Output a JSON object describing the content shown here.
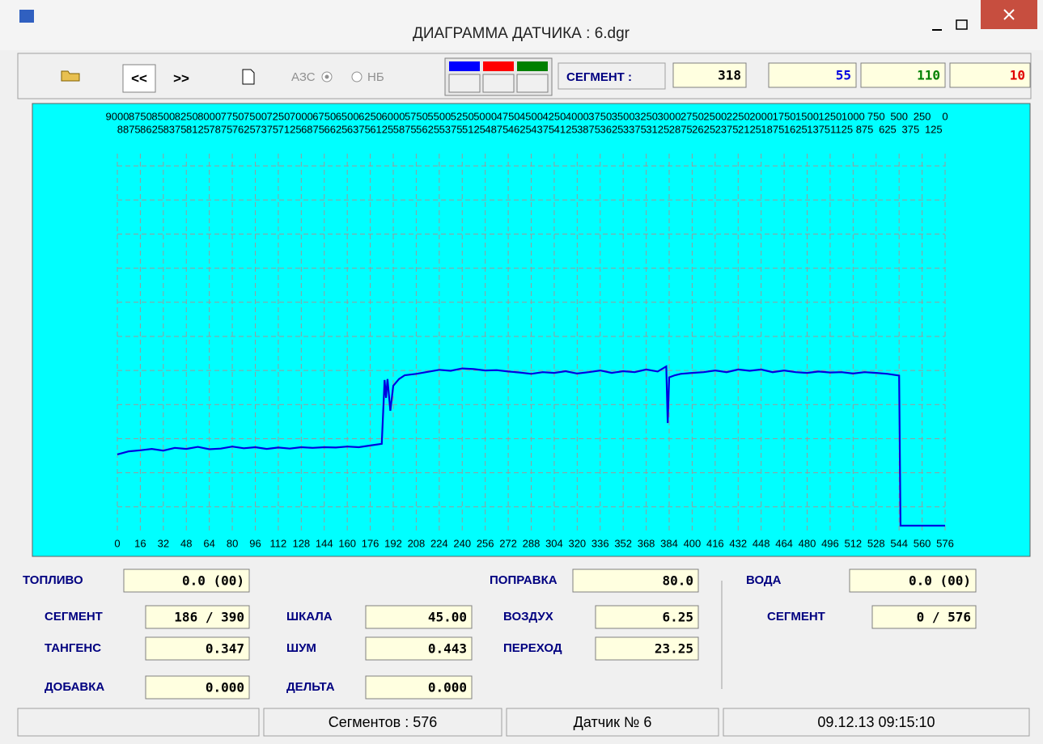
{
  "window": {
    "title": "ДИАГРАММА ДАТЧИКА : 6.dgr"
  },
  "toolbar": {
    "prev": "<<",
    "next": ">>",
    "azs": "АЗС",
    "nb": "НБ",
    "segment_label": "СЕГМЕНТ :",
    "segment_values": [
      {
        "text": "318",
        "color": "#000000"
      },
      {
        "text": "55",
        "color": "#0000e0"
      },
      {
        "text": "110",
        "color": "#008000"
      },
      {
        "text": "10",
        "color": "#e00000"
      }
    ],
    "legend_colors": [
      "#0000ff",
      "#ff0000",
      "#008000"
    ]
  },
  "chart_data": {
    "type": "line",
    "x": [
      0,
      8,
      16,
      24,
      32,
      40,
      48,
      56,
      64,
      72,
      80,
      88,
      96,
      104,
      112,
      120,
      128,
      136,
      144,
      152,
      160,
      168,
      176,
      184,
      186,
      187,
      188,
      190,
      192,
      196,
      200,
      208,
      216,
      224,
      232,
      240,
      248,
      256,
      264,
      272,
      280,
      288,
      296,
      304,
      312,
      320,
      328,
      336,
      344,
      352,
      360,
      368,
      376,
      382,
      383,
      384,
      388,
      392,
      400,
      408,
      416,
      424,
      432,
      440,
      448,
      456,
      464,
      472,
      480,
      488,
      496,
      504,
      512,
      520,
      528,
      536,
      544,
      545,
      576
    ],
    "series": [
      {
        "color": "#0000e0",
        "values": [
          15.4,
          16.3,
          16.6,
          17.0,
          16.5,
          17.3,
          17.0,
          17.6,
          16.9,
          17.1,
          17.7,
          17.2,
          17.5,
          17.0,
          17.4,
          17.1,
          17.5,
          17.3,
          17.5,
          17.4,
          17.7,
          17.5,
          18.0,
          18.5,
          37.2,
          32.0,
          37.5,
          28.2,
          35.5,
          37.5,
          38.6,
          39.0,
          39.6,
          40.2,
          39.9,
          40.6,
          40.4,
          40.0,
          40.1,
          39.7,
          39.4,
          39.0,
          39.5,
          39.3,
          39.8,
          39.1,
          39.5,
          40.0,
          39.3,
          39.8,
          39.5,
          40.3,
          39.7,
          41.2,
          24.6,
          38.0,
          38.6,
          39.0,
          39.3,
          39.5,
          40.0,
          39.5,
          40.3,
          39.9,
          40.3,
          39.5,
          40.0,
          39.5,
          39.3,
          39.7,
          39.4,
          39.5,
          39.1,
          39.5,
          39.3,
          39.0,
          38.5,
          -5.5,
          -5.5
        ]
      }
    ],
    "xlim": [
      0,
      576
    ],
    "xticks": [
      0,
      16,
      32,
      48,
      64,
      80,
      96,
      112,
      128,
      144,
      160,
      176,
      192,
      208,
      224,
      240,
      256,
      272,
      288,
      304,
      320,
      336,
      352,
      368,
      384,
      400,
      416,
      432,
      448,
      464,
      480,
      496,
      512,
      528,
      544,
      560,
      576
    ],
    "top_ticks": [
      9000,
      8875,
      8750,
      8625,
      8500,
      8375,
      8250,
      8125,
      8000,
      7875,
      7750,
      7625,
      7500,
      7375,
      7250,
      7125,
      7000,
      6875,
      6750,
      6625,
      6500,
      6375,
      6250,
      6125,
      6000,
      5875,
      5750,
      5625,
      5500,
      5375,
      5250,
      5125,
      5000,
      4875,
      4750,
      4625,
      4500,
      4375,
      4250,
      4125,
      4000,
      3875,
      3750,
      3625,
      3500,
      3375,
      3250,
      3125,
      3000,
      2875,
      2750,
      2625,
      2500,
      2375,
      2250,
      2125,
      2000,
      1875,
      1750,
      1625,
      1500,
      1375,
      1250,
      1125,
      1000,
      875,
      750,
      625,
      500,
      375,
      250,
      125,
      0
    ],
    "ylim": [
      -5.5,
      105
    ],
    "yticks": [
      0,
      10,
      20,
      30,
      40,
      50,
      60,
      70,
      80,
      90,
      100
    ],
    "grid": true
  },
  "fields": [
    {
      "label": "ТОПЛИВО",
      "value": "0.0 (00)"
    },
    {
      "label": "СЕГМЕНТ",
      "value": "186 / 390"
    },
    {
      "label": "ТАНГЕНС",
      "value": "0.347"
    },
    {
      "label": "ДОБАВКА",
      "value": "0.000"
    },
    {
      "label": "ШКАЛА",
      "value": "45.00"
    },
    {
      "label": "ШУМ",
      "value": "0.443"
    },
    {
      "label": "ДЕЛЬТА",
      "value": "0.000"
    },
    {
      "label": "ПОПРАВКА",
      "value": "80.0"
    },
    {
      "label": "ВОЗДУХ",
      "value": "6.25"
    },
    {
      "label": "ПЕРЕХОД",
      "value": "23.25"
    },
    {
      "label": "ВОДА",
      "value": "0.0 (00)"
    },
    {
      "label": "СЕГМЕНТ",
      "value": "0 / 576"
    }
  ],
  "status": [
    "Сегментов : 576",
    "Датчик № 6",
    "09.12.13 09:15:10"
  ]
}
